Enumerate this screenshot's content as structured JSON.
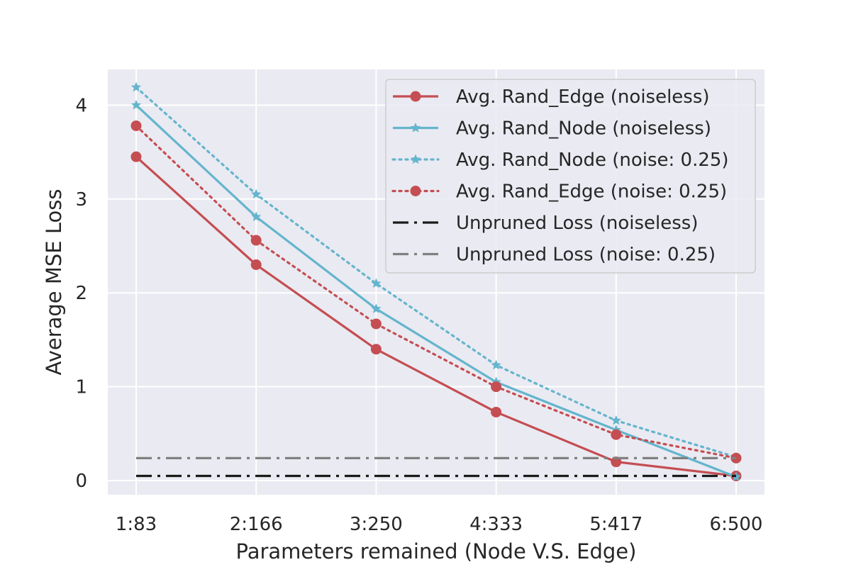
{
  "chart_data": {
    "type": "line",
    "title": "",
    "xlabel": "Parameters remained (Node V.S. Edge)",
    "ylabel": "Average MSE Loss",
    "categories": [
      "1:83",
      "2:166",
      "3:250",
      "4:333",
      "5:417",
      "6:500"
    ],
    "ylim": [
      -0.15,
      4.38
    ],
    "yticks": [
      0,
      1,
      2,
      3,
      4
    ],
    "grid": true,
    "legend_position": "top-right",
    "series": [
      {
        "name": "Avg. Rand_Edge (noiseless)",
        "values": [
          3.45,
          2.3,
          1.4,
          0.73,
          0.2,
          0.05
        ],
        "color": "#c44e52",
        "linestyle": "solid",
        "marker": "circle"
      },
      {
        "name": "Avg. Rand_Node (noiseless)",
        "values": [
          4.0,
          2.81,
          1.83,
          1.05,
          0.54,
          0.04
        ],
        "color": "#64b5cd",
        "linestyle": "solid",
        "marker": "star"
      },
      {
        "name": "Avg. Rand_Node (noise: 0.25)",
        "values": [
          4.19,
          3.05,
          2.1,
          1.23,
          0.64,
          0.25
        ],
        "color": "#64b5cd",
        "linestyle": "dotted",
        "marker": "star"
      },
      {
        "name": "Avg. Rand_Edge (noise: 0.25)",
        "values": [
          3.78,
          2.56,
          1.67,
          1.0,
          0.49,
          0.24
        ],
        "color": "#c44e52",
        "linestyle": "dotted",
        "marker": "circle"
      },
      {
        "name": "Unpruned Loss (noiseless)",
        "values": [
          0.05,
          0.05,
          0.05,
          0.05,
          0.05,
          0.05
        ],
        "color": "#1a1a1a",
        "linestyle": "dashdot",
        "marker": "none"
      },
      {
        "name": "Unpruned Loss (noise: 0.25)",
        "values": [
          0.24,
          0.24,
          0.24,
          0.24,
          0.24,
          0.24
        ],
        "color": "#808080",
        "linestyle": "dashdot",
        "marker": "none"
      }
    ]
  }
}
